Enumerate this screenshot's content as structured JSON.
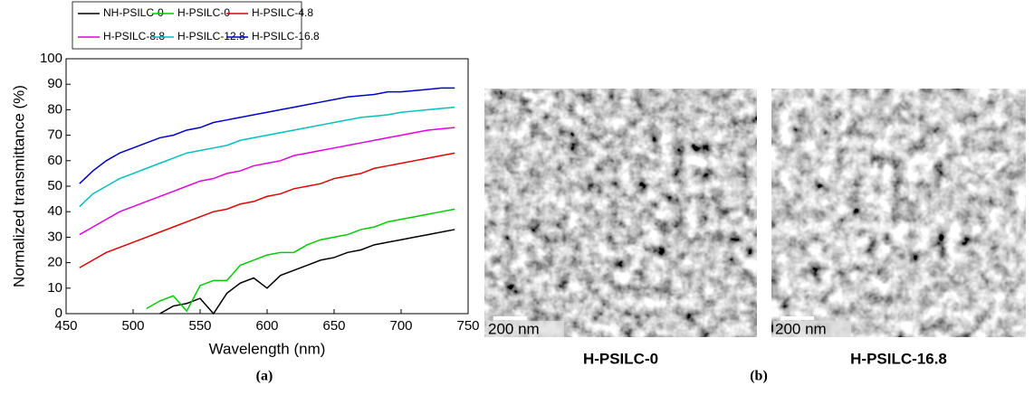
{
  "chart_data": {
    "type": "line",
    "x": [
      460,
      470,
      480,
      490,
      500,
      510,
      520,
      530,
      540,
      550,
      560,
      570,
      580,
      590,
      600,
      610,
      620,
      630,
      640,
      650,
      660,
      670,
      680,
      690,
      700,
      710,
      720,
      730,
      740
    ],
    "series": [
      {
        "name": "NH-PSILC-0",
        "color": "#000000",
        "values": [
          null,
          null,
          null,
          null,
          null,
          null,
          0,
          3,
          4,
          6,
          0,
          8,
          12,
          14,
          10,
          15,
          17,
          19,
          21,
          22,
          24,
          25,
          27,
          28,
          29,
          30,
          31,
          32,
          33
        ]
      },
      {
        "name": "H-PSILC-0",
        "color": "#00cc00",
        "values": [
          null,
          null,
          null,
          null,
          null,
          2,
          5,
          7,
          1,
          11,
          13,
          13,
          19,
          21,
          23,
          24,
          24,
          27,
          29,
          30,
          31,
          33,
          34,
          36,
          37,
          38,
          39,
          40,
          41
        ]
      },
      {
        "name": "H-PSILC-4.8",
        "color": "#e00000",
        "values": [
          18,
          21,
          24,
          26,
          28,
          30,
          32,
          34,
          36,
          38,
          40,
          41,
          43,
          44,
          46,
          47,
          49,
          50,
          51,
          53,
          54,
          55,
          57,
          58,
          59,
          60,
          61,
          62,
          63
        ]
      },
      {
        "name": "H-PSILC-8.8",
        "color": "#e000e0",
        "values": [
          31,
          34,
          37,
          40,
          42,
          44,
          46,
          48,
          50,
          52,
          53,
          55,
          56,
          58,
          59,
          60,
          62,
          63,
          64,
          65,
          66,
          67,
          68,
          69,
          70,
          71,
          72,
          72.5,
          73
        ]
      },
      {
        "name": "H-PSILC-12.8",
        "color": "#00c0c0",
        "values": [
          42,
          47,
          50,
          53,
          55,
          57,
          59,
          61,
          63,
          64,
          65,
          66,
          68,
          69,
          70,
          71,
          72,
          73,
          74,
          75,
          76,
          77,
          77.5,
          78,
          79,
          79.5,
          80,
          80.5,
          81
        ]
      },
      {
        "name": "H-PSILC-16.8",
        "color": "#0000c8",
        "values": [
          51,
          56,
          60,
          63,
          65,
          67,
          69,
          70,
          72,
          73,
          75,
          76,
          77,
          78,
          79,
          80,
          81,
          82,
          83,
          84,
          85,
          85.5,
          86,
          87,
          87,
          87.5,
          88,
          88.5,
          88.5
        ]
      }
    ],
    "xlabel": "Wavelength (nm)",
    "ylabel": "Normalized transmittance (%)",
    "xlim": [
      450,
      750
    ],
    "xticks": [
      450,
      500,
      550,
      600,
      650,
      700,
      750
    ],
    "ylim": [
      0,
      100
    ],
    "yticks": [
      0,
      10,
      20,
      30,
      40,
      50,
      60,
      70,
      80,
      90,
      100
    ],
    "legend": "top",
    "panel": "(a)"
  },
  "images": [
    {
      "caption": "H-PSILC-0",
      "scale_label": "200 nm"
    },
    {
      "caption": "H-PSILC-16.8",
      "scale_label": "200 nm"
    }
  ],
  "panel_b": "(b)"
}
